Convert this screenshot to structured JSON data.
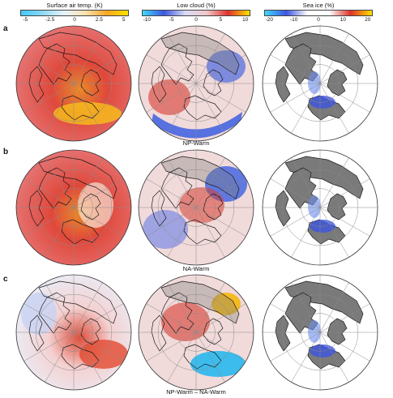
{
  "colorbars": [
    {
      "title": "Surface air temp. (K)",
      "ticks": [
        "-5",
        "-2.5",
        "0",
        "2.5",
        "5"
      ],
      "gradient": [
        "#3fc8ff",
        "#8ed8f5",
        "#e6f3fb",
        "#fbe2b2",
        "#f5a623",
        "#ffe100"
      ]
    },
    {
      "title": "Low cloud (%)",
      "ticks": [
        "-10",
        "-5",
        "0",
        "5",
        "10"
      ],
      "gradient": [
        "#3fd8ff",
        "#3d55e0",
        "#d8dcf5",
        "#f2c7c7",
        "#e0302a",
        "#ffe100"
      ]
    },
    {
      "title": "Sea ice (%)",
      "ticks": [
        "-20",
        "-10",
        "0",
        "10",
        "20"
      ],
      "gradient": [
        "#3fd8ff",
        "#3d55e0",
        "#ffffff",
        "#ffffff",
        "#e0302a",
        "#ffe100"
      ]
    }
  ],
  "rows": [
    {
      "label": "a",
      "caption": "NP-Warm"
    },
    {
      "label": "b",
      "caption": "NA-Warm"
    },
    {
      "label": "c",
      "caption": "NP-Warm – NA-Warm"
    }
  ],
  "map_style": {
    "land_fill": "#7a7a7a",
    "coast": "#1a1a1a",
    "grid": "#8a8a8a"
  }
}
